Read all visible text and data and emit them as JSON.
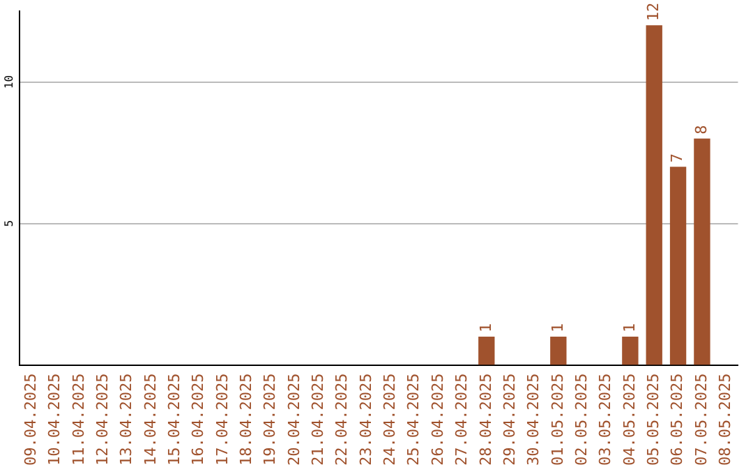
{
  "chart_data": {
    "type": "bar",
    "categories": [
      "09.04.2025",
      "10.04.2025",
      "11.04.2025",
      "12.04.2025",
      "13.04.2025",
      "14.04.2025",
      "15.04.2025",
      "16.04.2025",
      "17.04.2025",
      "18.04.2025",
      "19.04.2025",
      "20.04.2025",
      "21.04.2025",
      "22.04.2025",
      "23.04.2025",
      "24.04.2025",
      "25.04.2025",
      "26.04.2025",
      "27.04.2025",
      "28.04.2025",
      "29.04.2025",
      "30.04.2025",
      "01.05.2025",
      "02.05.2025",
      "03.05.2025",
      "04.05.2025",
      "05.05.2025",
      "06.05.2025",
      "07.05.2025",
      "08.05.2025"
    ],
    "values": [
      0,
      0,
      0,
      0,
      0,
      0,
      0,
      0,
      0,
      0,
      0,
      0,
      0,
      0,
      0,
      0,
      0,
      0,
      0,
      1,
      0,
      0,
      1,
      0,
      0,
      1,
      12,
      7,
      8,
      0
    ],
    "value_labels": [
      null,
      null,
      null,
      null,
      null,
      null,
      null,
      null,
      null,
      null,
      null,
      null,
      null,
      null,
      null,
      null,
      null,
      null,
      null,
      "1",
      null,
      null,
      "1",
      null,
      null,
      "1",
      "12",
      "7",
      "8",
      null
    ],
    "color": "#a0522d",
    "ylim": [
      0,
      12.5
    ],
    "yticks": [
      5,
      10
    ],
    "grid": "y",
    "legend": false
  }
}
